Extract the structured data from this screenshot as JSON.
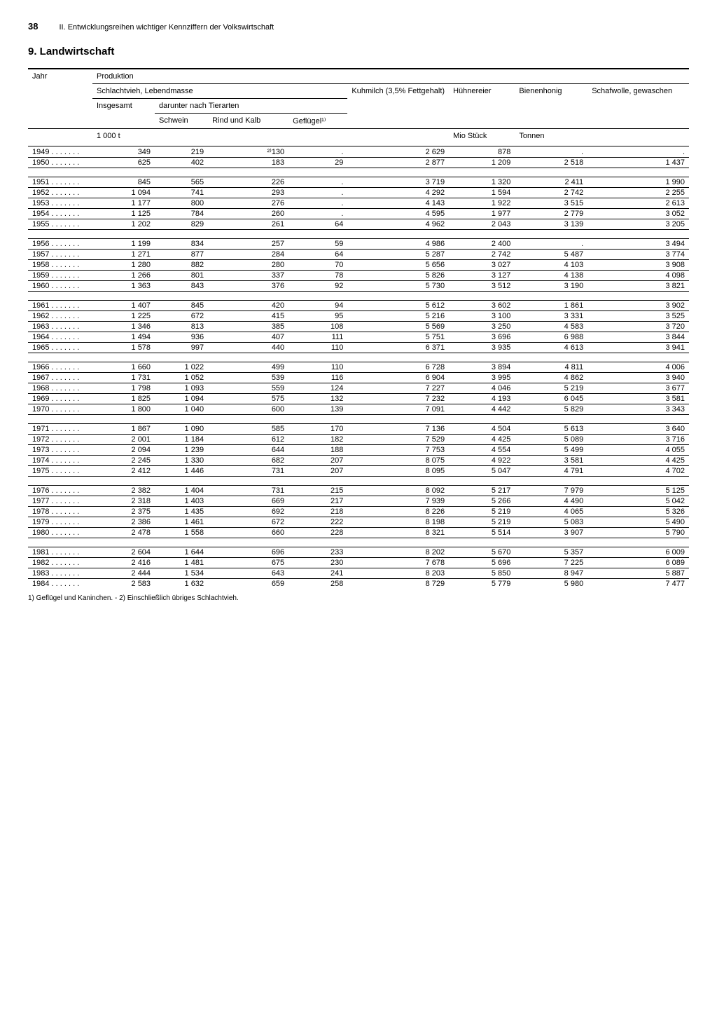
{
  "page_number": "38",
  "page_header": "II. Entwicklungsreihen wichtiger Kennziffern der Volkswirtschaft",
  "section_title": "9. Landwirtschaft",
  "headers": {
    "jahr": "Jahr",
    "produktion": "Produktion",
    "schlachtvieh": "Schlachtvieh, Lebendmasse",
    "insgesamt": "Insgesamt",
    "darunter": "darunter nach Tierarten",
    "schwein": "Schwein",
    "rind": "Rind und Kalb",
    "gefluegel": "Geflügel¹⁾",
    "kuhmilch": "Kuhmilch (3,5% Fett­gehalt)",
    "eier": "Hühner­eier",
    "honig": "Bienen­honig",
    "wolle": "Schafwolle, gewaschen"
  },
  "units": {
    "tonnes1000": "1 000 t",
    "mio_stueck": "Mio Stück",
    "tonnen": "Tonnen"
  },
  "groups": [
    [
      {
        "y": "1949",
        "c": [
          "349",
          "219",
          "²⁾130",
          ".",
          "2 629",
          "878",
          ".",
          "."
        ]
      },
      {
        "y": "1950",
        "c": [
          "625",
          "402",
          "183",
          "29",
          "2 877",
          "1 209",
          "2 518",
          "1 437"
        ]
      }
    ],
    [
      {
        "y": "1951",
        "c": [
          "845",
          "565",
          "226",
          ".",
          "3 719",
          "1 320",
          "2 411",
          "1 990"
        ]
      },
      {
        "y": "1952",
        "c": [
          "1 094",
          "741",
          "293",
          ".",
          "4 292",
          "1 594",
          "2 742",
          "2 255"
        ]
      },
      {
        "y": "1953",
        "c": [
          "1 177",
          "800",
          "276",
          ".",
          "4 143",
          "1 922",
          "3 515",
          "2 613"
        ]
      },
      {
        "y": "1954",
        "c": [
          "1 125",
          "784",
          "260",
          ".",
          "4 595",
          "1 977",
          "2 779",
          "3 052"
        ]
      },
      {
        "y": "1955",
        "c": [
          "1 202",
          "829",
          "261",
          "64",
          "4 962",
          "2 043",
          "3 139",
          "3 205"
        ]
      }
    ],
    [
      {
        "y": "1956",
        "c": [
          "1 199",
          "834",
          "257",
          "59",
          "4 986",
          "2 400",
          ".",
          "3 494"
        ]
      },
      {
        "y": "1957",
        "c": [
          "1 271",
          "877",
          "284",
          "64",
          "5 287",
          "2 742",
          "5 487",
          "3 774"
        ]
      },
      {
        "y": "1958",
        "c": [
          "1 280",
          "882",
          "280",
          "70",
          "5 656",
          "3 027",
          "4 103",
          "3 908"
        ]
      },
      {
        "y": "1959",
        "c": [
          "1 266",
          "801",
          "337",
          "78",
          "5 826",
          "3 127",
          "4 138",
          "4 098"
        ]
      },
      {
        "y": "1960",
        "c": [
          "1 363",
          "843",
          "376",
          "92",
          "5 730",
          "3 512",
          "3 190",
          "3 821"
        ]
      }
    ],
    [
      {
        "y": "1961",
        "c": [
          "1 407",
          "845",
          "420",
          "94",
          "5 612",
          "3 602",
          "1 861",
          "3 902"
        ]
      },
      {
        "y": "1962",
        "c": [
          "1 225",
          "672",
          "415",
          "95",
          "5 216",
          "3 100",
          "3 331",
          "3 525"
        ]
      },
      {
        "y": "1963",
        "c": [
          "1 346",
          "813",
          "385",
          "108",
          "5 569",
          "3 250",
          "4 583",
          "3 720"
        ]
      },
      {
        "y": "1964",
        "c": [
          "1 494",
          "936",
          "407",
          "111",
          "5 751",
          "3 696",
          "6 988",
          "3 844"
        ]
      },
      {
        "y": "1965",
        "c": [
          "1 578",
          "997",
          "440",
          "110",
          "6 371",
          "3 935",
          "4 613",
          "3 941"
        ]
      }
    ],
    [
      {
        "y": "1966",
        "c": [
          "1 660",
          "1 022",
          "499",
          "110",
          "6 728",
          "3 894",
          "4 811",
          "4 006"
        ]
      },
      {
        "y": "1967",
        "c": [
          "1 731",
          "1 052",
          "539",
          "116",
          "6 904",
          "3 995",
          "4 862",
          "3 940"
        ]
      },
      {
        "y": "1968",
        "c": [
          "1 798",
          "1 093",
          "559",
          "124",
          "7 227",
          "4 046",
          "5 219",
          "3 677"
        ]
      },
      {
        "y": "1969",
        "c": [
          "1 825",
          "1 094",
          "575",
          "132",
          "7 232",
          "4 193",
          "6 045",
          "3 581"
        ]
      },
      {
        "y": "1970",
        "c": [
          "1 800",
          "1 040",
          "600",
          "139",
          "7 091",
          "4 442",
          "5 829",
          "3 343"
        ]
      }
    ],
    [
      {
        "y": "1971",
        "c": [
          "1 867",
          "1 090",
          "585",
          "170",
          "7 136",
          "4 504",
          "5 613",
          "3 640"
        ]
      },
      {
        "y": "1972",
        "c": [
          "2 001",
          "1 184",
          "612",
          "182",
          "7 529",
          "4 425",
          "5 089",
          "3 716"
        ]
      },
      {
        "y": "1973",
        "c": [
          "2 094",
          "1 239",
          "644",
          "188",
          "7 753",
          "4 554",
          "5 499",
          "4 055"
        ]
      },
      {
        "y": "1974",
        "c": [
          "2 245",
          "1 330",
          "682",
          "207",
          "8 075",
          "4 922",
          "3 581",
          "4 425"
        ]
      },
      {
        "y": "1975",
        "c": [
          "2 412",
          "1 446",
          "731",
          "207",
          "8 095",
          "5 047",
          "4 791",
          "4 702"
        ]
      }
    ],
    [
      {
        "y": "1976",
        "c": [
          "2 382",
          "1 404",
          "731",
          "215",
          "8 092",
          "5 217",
          "7 979",
          "5 125"
        ]
      },
      {
        "y": "1977",
        "c": [
          "2 318",
          "1 403",
          "669",
          "217",
          "7 939",
          "5 266",
          "4 490",
          "5 042"
        ]
      },
      {
        "y": "1978",
        "c": [
          "2 375",
          "1 435",
          "692",
          "218",
          "8 226",
          "5 219",
          "4 065",
          "5 326"
        ]
      },
      {
        "y": "1979",
        "c": [
          "2 386",
          "1 461",
          "672",
          "222",
          "8 198",
          "5 219",
          "5 083",
          "5 490"
        ]
      },
      {
        "y": "1980",
        "c": [
          "2 478",
          "1 558",
          "660",
          "228",
          "8 321",
          "5 514",
          "3 907",
          "5 790"
        ]
      }
    ],
    [
      {
        "y": "1981",
        "c": [
          "2 604",
          "1 644",
          "696",
          "233",
          "8 202",
          "5 670",
          "5 357",
          "6 009"
        ]
      },
      {
        "y": "1982",
        "c": [
          "2 416",
          "1 481",
          "675",
          "230",
          "7 678",
          "5 696",
          "7 225",
          "6 089"
        ]
      },
      {
        "y": "1983",
        "c": [
          "2 444",
          "1 534",
          "643",
          "241",
          "8 203",
          "5 850",
          "8 947",
          "5 887"
        ]
      },
      {
        "y": "1984",
        "c": [
          "2 583",
          "1 632",
          "659",
          "258",
          "8 729",
          "5 779",
          "5 980",
          "7 477"
        ]
      }
    ]
  ],
  "footnote": "1) Geflügel und Kaninchen. - 2) Einschließlich übriges Schlachtvieh."
}
